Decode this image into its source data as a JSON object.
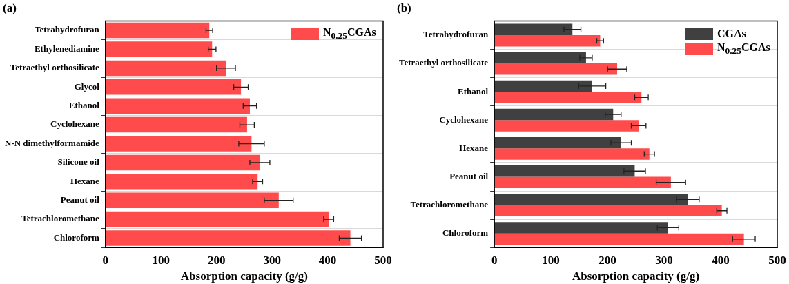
{
  "chart_data": [
    {
      "type": "bar",
      "title": "(a)",
      "orientation": "horizontal",
      "xlabel": "Absorption capacity (g/g)",
      "categories": [
        "Tetrahydrofuran",
        "Ethylenediamine",
        "Tetraethyl orthosilicate",
        "Glycol",
        "Ethanol",
        "Cyclohexane",
        "N-N dimethylformamide",
        "Silicone oil",
        "Hexane",
        "Peanut oil",
        "Tetrachloromethane",
        "Chloroform"
      ],
      "series": [
        {
          "name": "N$_{0.25}$CGAs",
          "color": "#ff4b4b",
          "values": [
            187,
            192,
            217,
            244,
            260,
            255,
            263,
            278,
            274,
            312,
            402,
            441
          ],
          "errors": [
            6,
            7,
            17,
            13,
            12,
            13,
            23,
            18,
            9,
            26,
            9,
            20
          ]
        }
      ],
      "xlim": [
        0,
        500
      ],
      "xticks": [
        0,
        100,
        200,
        300,
        400,
        500
      ],
      "grid": "y",
      "legend": "top right"
    },
    {
      "type": "bar",
      "title": "(b)",
      "orientation": "horizontal",
      "xlabel": "Absorption capacity (g/g)",
      "categories": [
        "Tetrahydrofuran",
        "Tetraethyl orthosilicate",
        "Ethanol",
        "Cyclohexane",
        "Hexane",
        "Peanut oil",
        "Tetrachloromethane",
        "Chloroform"
      ],
      "series": [
        {
          "name": "CGAs",
          "color": "#404040",
          "values": [
            138,
            162,
            173,
            210,
            224,
            248,
            342,
            307
          ],
          "errors": [
            15,
            11,
            24,
            14,
            18,
            19,
            20,
            19
          ]
        },
        {
          "name": "N$_{0.25}$CGAs",
          "color": "#ff4b4b",
          "values": [
            187,
            217,
            260,
            255,
            274,
            312,
            402,
            441
          ],
          "errors": [
            6,
            17,
            12,
            13,
            9,
            26,
            9,
            20
          ]
        }
      ],
      "xlim": [
        0,
        500
      ],
      "xticks": [
        0,
        100,
        200,
        300,
        400,
        500
      ],
      "grid": "y",
      "legend": "top right"
    }
  ]
}
